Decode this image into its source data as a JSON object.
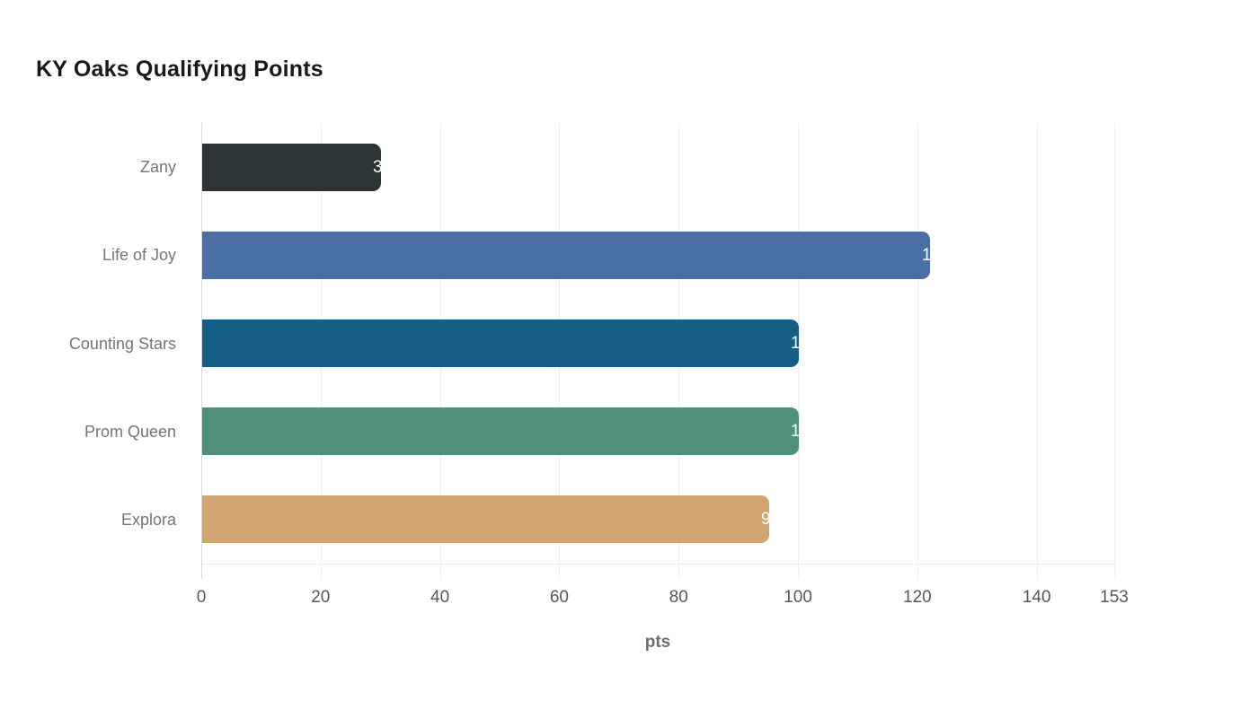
{
  "title": "KY Oaks Qualifying Points",
  "chart_data": {
    "type": "bar",
    "orientation": "horizontal",
    "title": "KY Oaks Qualifying Points",
    "xlabel": "pts",
    "ylabel": "",
    "categories": [
      "Zany",
      "Life of Joy",
      "Counting Stars",
      "Prom Queen",
      "Explora"
    ],
    "values": [
      30,
      122,
      100,
      100,
      95
    ],
    "bar_colors": [
      "#2d3436",
      "#4a6fa5",
      "#155f87",
      "#4f8f7b",
      "#d2a471"
    ],
    "value_label_color": "#ffffff",
    "xlim": [
      0,
      153
    ],
    "x_ticks": [
      0,
      20,
      40,
      60,
      80,
      100,
      120,
      140,
      153
    ],
    "grid": "vertical-only",
    "legend": "none"
  },
  "colors": {
    "background": "#ffffff",
    "title_text": "#17191c",
    "category_label_text": "#6f7779",
    "tick_label_text": "#525a5d",
    "axis_title_text": "#696f71",
    "gridline": "#edeff0",
    "zero_line": "#d6d9da"
  }
}
